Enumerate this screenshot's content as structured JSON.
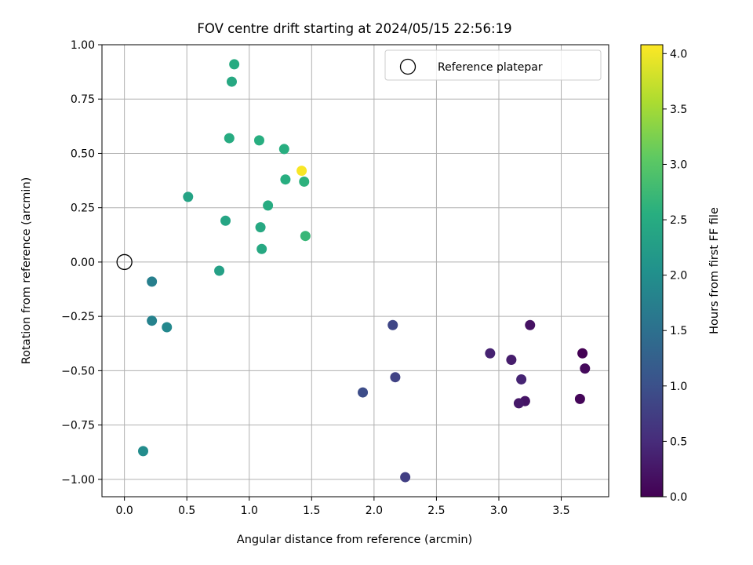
{
  "chart_data": {
    "type": "scatter",
    "title": "FOV centre drift starting at 2024/05/15 22:56:19",
    "xlabel": "Angular distance from reference (arcmin)",
    "ylabel": "Rotation from reference (arcmin)",
    "xlim": [
      -0.18,
      3.88
    ],
    "ylim": [
      -1.08,
      1.0
    ],
    "xticks": [
      0.0,
      0.5,
      1.0,
      1.5,
      2.0,
      2.5,
      3.0,
      3.5
    ],
    "xtick_labels": [
      "0.0",
      "0.5",
      "1.0",
      "1.5",
      "2.0",
      "2.5",
      "3.0",
      "3.5"
    ],
    "yticks": [
      1.0,
      0.75,
      0.5,
      0.25,
      0.0,
      -0.25,
      -0.5,
      -0.75,
      -1.0
    ],
    "ytick_labels": [
      "1.00",
      "0.75",
      "0.50",
      "0.25",
      "0.00",
      "−0.25",
      "−0.50",
      "−0.75",
      "−1.00"
    ],
    "grid": true,
    "legend": {
      "position": "top-right",
      "entries": [
        "Reference platepar"
      ]
    },
    "reference_point": {
      "x": 0.0,
      "y": 0.0,
      "label": "Reference platepar"
    },
    "colorbar": {
      "label": "Hours from first FF file",
      "range": [
        0.0,
        4.08
      ],
      "ticks": [
        0.0,
        0.5,
        1.0,
        1.5,
        2.0,
        2.5,
        3.0,
        3.5,
        4.0
      ],
      "tick_labels": [
        "0.0",
        "0.5",
        "1.0",
        "1.5",
        "2.0",
        "2.5",
        "3.0",
        "3.5",
        "4.0"
      ],
      "colormap": "viridis"
    },
    "points": [
      {
        "x": 3.67,
        "y": -0.42,
        "c": 0.0
      },
      {
        "x": 3.65,
        "y": -0.63,
        "c": 0.05
      },
      {
        "x": 3.69,
        "y": -0.49,
        "c": 0.1
      },
      {
        "x": 3.25,
        "y": -0.29,
        "c": 0.18
      },
      {
        "x": 3.21,
        "y": -0.64,
        "c": 0.22
      },
      {
        "x": 3.16,
        "y": -0.65,
        "c": 0.28
      },
      {
        "x": 3.1,
        "y": -0.45,
        "c": 0.32
      },
      {
        "x": 2.93,
        "y": -0.42,
        "c": 0.38
      },
      {
        "x": 3.18,
        "y": -0.54,
        "c": 0.4
      },
      {
        "x": 2.25,
        "y": -0.99,
        "c": 0.75
      },
      {
        "x": 2.17,
        "y": -0.53,
        "c": 0.8
      },
      {
        "x": 2.15,
        "y": -0.29,
        "c": 0.85
      },
      {
        "x": 1.91,
        "y": -0.6,
        "c": 0.95
      },
      {
        "x": 0.22,
        "y": -0.09,
        "c": 1.75
      },
      {
        "x": 0.22,
        "y": -0.27,
        "c": 1.8
      },
      {
        "x": 0.34,
        "y": -0.3,
        "c": 1.9
      },
      {
        "x": 0.15,
        "y": -0.87,
        "c": 1.95
      },
      {
        "x": 0.76,
        "y": -0.04,
        "c": 2.3
      },
      {
        "x": 0.51,
        "y": 0.3,
        "c": 2.35
      },
      {
        "x": 0.81,
        "y": 0.19,
        "c": 2.4
      },
      {
        "x": 1.09,
        "y": 0.16,
        "c": 2.45
      },
      {
        "x": 1.1,
        "y": 0.06,
        "c": 2.45
      },
      {
        "x": 1.15,
        "y": 0.26,
        "c": 2.5
      },
      {
        "x": 0.84,
        "y": 0.57,
        "c": 2.5
      },
      {
        "x": 1.08,
        "y": 0.56,
        "c": 2.55
      },
      {
        "x": 0.86,
        "y": 0.83,
        "c": 2.45
      },
      {
        "x": 0.88,
        "y": 0.91,
        "c": 2.5
      },
      {
        "x": 1.28,
        "y": 0.52,
        "c": 2.55
      },
      {
        "x": 1.29,
        "y": 0.38,
        "c": 2.55
      },
      {
        "x": 1.44,
        "y": 0.37,
        "c": 2.6
      },
      {
        "x": 1.45,
        "y": 0.12,
        "c": 2.7
      },
      {
        "x": 1.42,
        "y": 0.42,
        "c": 4.05
      }
    ]
  }
}
